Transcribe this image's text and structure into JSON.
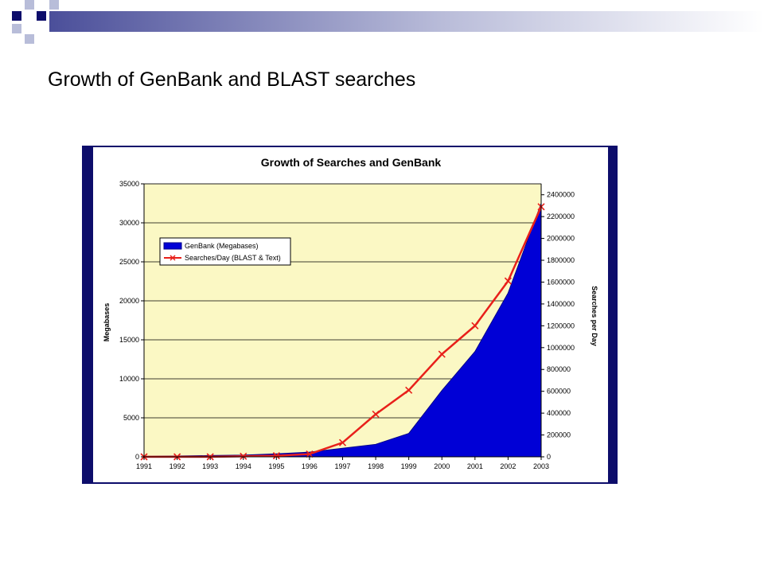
{
  "slide": {
    "title": "Growth of GenBank and BLAST searches",
    "colors": {
      "dark_square": "#0d0d6b",
      "light_square": "#b8bdd9",
      "bar_gradient_start": "#4b4f9a"
    }
  },
  "chart_data": {
    "type": "area",
    "title": "Growth of Searches and GenBank",
    "x": [
      "1991",
      "1992",
      "1993",
      "1994",
      "1995",
      "1996",
      "1997",
      "1998",
      "1999",
      "2000",
      "2001",
      "2002",
      "2003"
    ],
    "ylabel": "Megabases",
    "ylabel_right": "Searches per Day",
    "ylim": [
      0,
      35000
    ],
    "ylim_right": [
      0,
      2500000
    ],
    "yticks": [
      "0",
      "5000",
      "10000",
      "15000",
      "20000",
      "25000",
      "30000",
      "35000"
    ],
    "yticks_right": [
      "0",
      "200000",
      "400000",
      "600000",
      "800000",
      "1000000",
      "1200000",
      "1400000",
      "1600000",
      "1800000",
      "2000000",
      "2200000",
      "2400000"
    ],
    "grid": true,
    "legend_position": "upper-left",
    "plot_background": "#fbf8c4",
    "series": [
      {
        "name": "GenBank (Megabases)",
        "type": "area",
        "axis": "left",
        "color": "#0000d6",
        "values": [
          70,
          100,
          160,
          220,
          380,
          600,
          1100,
          1600,
          3000,
          8500,
          13500,
          21000,
          32500
        ]
      },
      {
        "name": "Searches/Day (BLAST & Text)",
        "type": "line",
        "axis": "right",
        "color": "#e8201a",
        "marker": "x",
        "values": [
          0,
          0,
          0,
          5000,
          10000,
          25000,
          130000,
          390000,
          610000,
          940000,
          1200000,
          1610000,
          2290000
        ]
      }
    ]
  }
}
